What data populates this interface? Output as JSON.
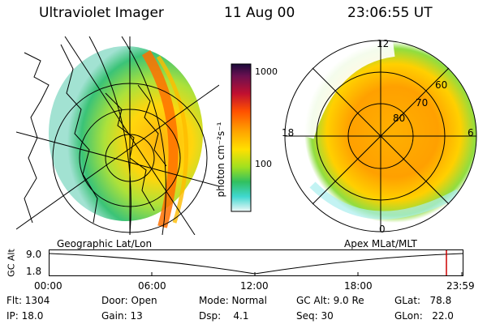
{
  "header": {
    "instrument": "Ultraviolet Imager",
    "date": "11 Aug 00",
    "time": "23:06:55 UT"
  },
  "colorbar": {
    "unit_label": "photon cm⁻²s⁻¹",
    "ticks": [
      "1000",
      "100"
    ]
  },
  "polar_plot": {
    "mlt_labels": [
      "12",
      "18",
      "6",
      "0"
    ],
    "lat_labels": [
      "60",
      "70",
      "80"
    ]
  },
  "panels": {
    "left_caption": "Geographic Lat/Lon",
    "right_caption": "Apex MLat/MLT"
  },
  "altitude_plot": {
    "ylabel": "GC Alt",
    "yticks": [
      "9.0",
      "1.8"
    ],
    "time_ticks": [
      "00:00",
      "06:00",
      "12:00",
      "18:00",
      "23:59"
    ]
  },
  "info": {
    "flt": "Flt: 1304",
    "ip": "IP: 18.0",
    "door": "Door: Open",
    "gain": "Gain: 13",
    "mode": "Mode: Normal",
    "dsp": "Dsp:    4.1",
    "gcalt": "GC Alt: 9.0 Re",
    "seq": "Seq: 30",
    "glat": "GLat:   78.8",
    "glon": "GLon:   22.0"
  },
  "colors": {
    "aurora_high": "#ff8a00",
    "aurora_mid": "#ffd000",
    "aurora_low": "#88dd33",
    "aurora_faint": "#22bb66",
    "marker": "#cc0000"
  }
}
